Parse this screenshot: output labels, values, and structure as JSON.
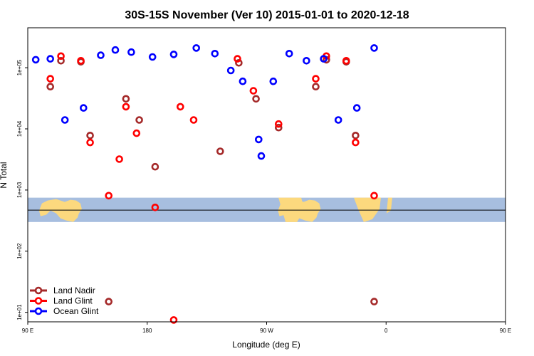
{
  "chart_data": {
    "type": "scatter",
    "title": "30S-15S November (Ver 10)   2015-01-01 to 2020-12-18",
    "xlabel": "Longitude (deg E)",
    "ylabel": "N Total",
    "xlim": [
      90,
      450
    ],
    "ylog": true,
    "ylim": [
      7,
      450000
    ],
    "x_ticks": [
      {
        "value": 90,
        "label": "90 E"
      },
      {
        "value": 180,
        "label": "180"
      },
      {
        "value": 270,
        "label": "90 W"
      },
      {
        "value": 360,
        "label": "0"
      },
      {
        "value": 450,
        "label": "90 E"
      },
      {
        "value": 540,
        "label": "180"
      }
    ],
    "y_ticks": [
      {
        "value": 10,
        "label": "1e+01"
      },
      {
        "value": 100,
        "label": "1e+02"
      },
      {
        "value": 1000,
        "label": "1e+03"
      },
      {
        "value": 10000,
        "label": "1e+04"
      },
      {
        "value": 100000,
        "label": "1e+05"
      }
    ],
    "reference_line_y": 470,
    "latitude_band": {
      "min": 300,
      "max": 750
    },
    "legend_position": "bottom-left",
    "series": [
      {
        "name": "Land Nadir",
        "color": "#a52a2a",
        "points": [
          [
            107,
            49000
          ],
          [
            115,
            130000
          ],
          [
            130,
            125000
          ],
          [
            137,
            7800
          ],
          [
            151,
            15
          ],
          [
            164,
            31000
          ],
          [
            174,
            14000
          ],
          [
            186,
            2400
          ],
          [
            235,
            4300
          ],
          [
            249,
            120000
          ],
          [
            262,
            31000
          ],
          [
            279,
            10500
          ],
          [
            307,
            49000
          ],
          [
            315,
            135000
          ],
          [
            330,
            125000
          ],
          [
            337,
            7800
          ],
          [
            351,
            15
          ]
        ]
      },
      {
        "name": "Land Glint",
        "color": "#ff0000",
        "points": [
          [
            107,
            66000
          ],
          [
            115,
            155000
          ],
          [
            130,
            130000
          ],
          [
            137,
            6000
          ],
          [
            151,
            810
          ],
          [
            159,
            3200
          ],
          [
            164,
            23000
          ],
          [
            172,
            8500
          ],
          [
            186,
            520
          ],
          [
            200,
            7.5
          ],
          [
            205,
            23000
          ],
          [
            215,
            14000
          ],
          [
            248,
            140000
          ],
          [
            260,
            42000
          ],
          [
            279,
            12000
          ],
          [
            307,
            66000
          ],
          [
            315,
            155000
          ],
          [
            330,
            130000
          ],
          [
            337,
            6000
          ],
          [
            351,
            810
          ]
        ]
      },
      {
        "name": "Ocean Glint",
        "color": "#0000ff",
        "points": [
          [
            96,
            135000
          ],
          [
            107,
            140000
          ],
          [
            118,
            14000
          ],
          [
            132,
            22000
          ],
          [
            145,
            160000
          ],
          [
            156,
            195000
          ],
          [
            168,
            180000
          ],
          [
            184,
            150000
          ],
          [
            200,
            165000
          ],
          [
            217,
            210000
          ],
          [
            231,
            170000
          ],
          [
            243,
            90000
          ],
          [
            252,
            60000
          ],
          [
            264,
            6700
          ],
          [
            266,
            3600
          ],
          [
            275,
            60000
          ],
          [
            287,
            170000
          ],
          [
            300,
            130000
          ],
          [
            313,
            140000
          ],
          [
            324,
            14000
          ],
          [
            338,
            22000
          ],
          [
            351,
            210000
          ]
        ]
      }
    ]
  }
}
